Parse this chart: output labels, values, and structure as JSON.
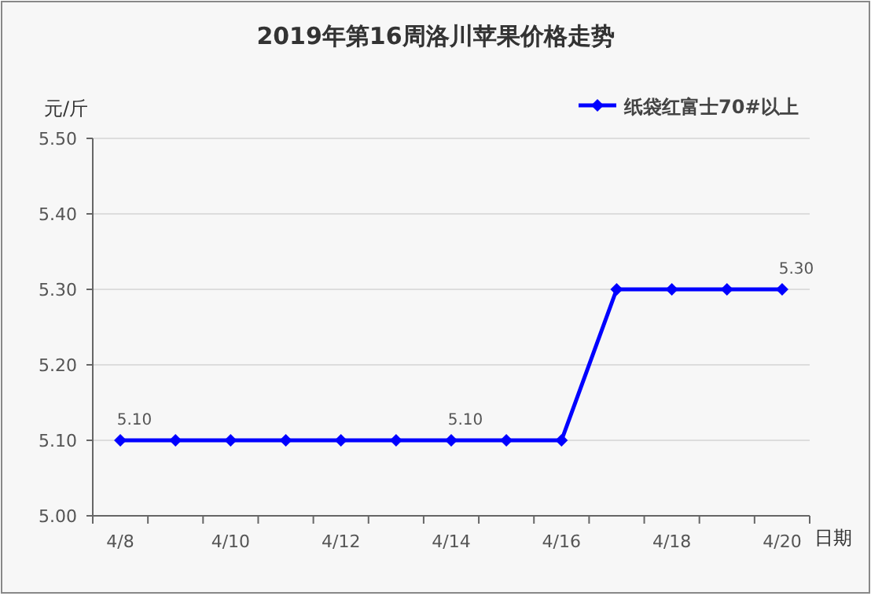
{
  "chart_data": {
    "type": "line",
    "title": "2019年第16周洛川苹果价格走势",
    "xlabel": "日期",
    "ylabel": "元/斤",
    "categories": [
      "4/8",
      null,
      "4/10",
      null,
      "4/12",
      null,
      "4/14",
      null,
      "4/16",
      null,
      "4/18",
      null,
      "4/20"
    ],
    "series": [
      {
        "name": "纸袋红富士70#以上",
        "color": "#0000ff",
        "values": [
          5.1,
          5.1,
          5.1,
          5.1,
          5.1,
          5.1,
          5.1,
          5.1,
          5.1,
          5.3,
          5.3,
          5.3,
          5.3
        ],
        "value_labels": [
          "5.10",
          null,
          null,
          null,
          null,
          null,
          "5.10",
          null,
          null,
          null,
          null,
          null,
          "5.30"
        ]
      }
    ],
    "ylim": [
      5.0,
      5.5
    ],
    "yticks": [
      {
        "value": 5.0,
        "label": "5.00"
      },
      {
        "value": 5.1,
        "label": "5.10"
      },
      {
        "value": 5.2,
        "label": "5.20"
      },
      {
        "value": 5.3,
        "label": "5.30"
      },
      {
        "value": 5.4,
        "label": "5.40"
      },
      {
        "value": 5.5,
        "label": "5.50"
      }
    ],
    "grid": "y",
    "legend": "top right",
    "marker": "diamond",
    "line_style": "solid"
  }
}
